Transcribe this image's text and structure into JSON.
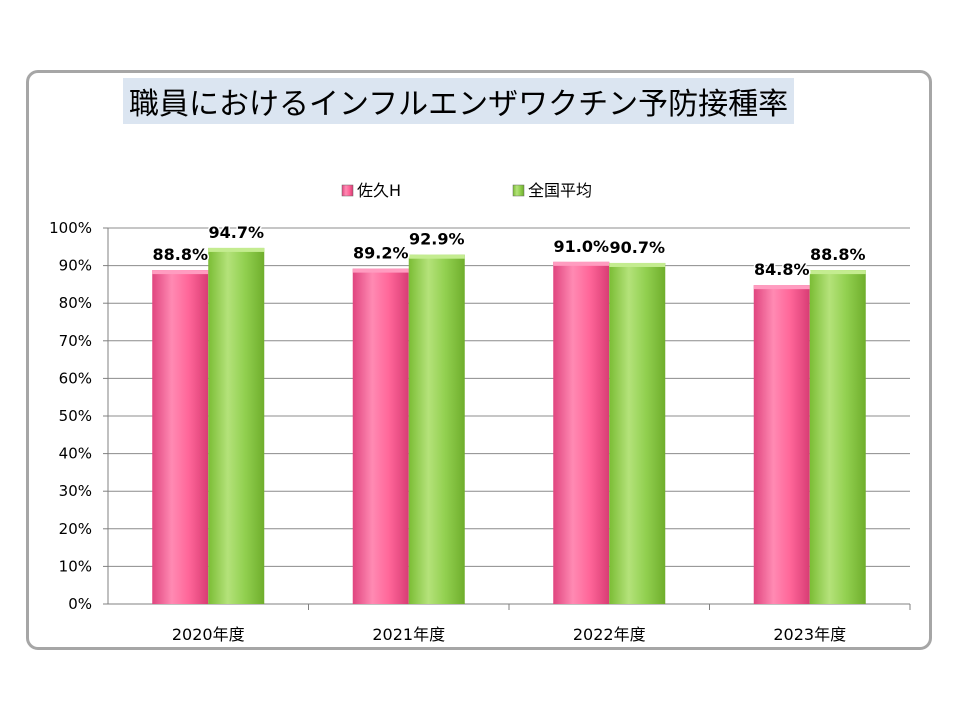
{
  "chart_data": {
    "type": "bar",
    "title": "職員におけるインフルエンザワクチン予防接種率",
    "categories": [
      "2020年度",
      "2021年度",
      "2022年度",
      "2023年度"
    ],
    "series": [
      {
        "name": "佐久H",
        "values": [
          88.8,
          89.2,
          91.0,
          84.8
        ],
        "labels": [
          "88.8%",
          "89.2%",
          "91.0%",
          "84.8%"
        ],
        "color": "#ff6699"
      },
      {
        "name": "全国平均",
        "values": [
          94.7,
          92.9,
          90.7,
          88.8
        ],
        "labels": [
          "94.7%",
          "92.9%",
          "90.7%",
          "88.8%"
        ],
        "color": "#92d050"
      }
    ],
    "y_ticks": [
      "0%",
      "10%",
      "20%",
      "30%",
      "40%",
      "50%",
      "60%",
      "70%",
      "80%",
      "90%",
      "100%"
    ],
    "ylim": [
      0,
      100
    ],
    "grid": true,
    "legend_position": "top"
  }
}
